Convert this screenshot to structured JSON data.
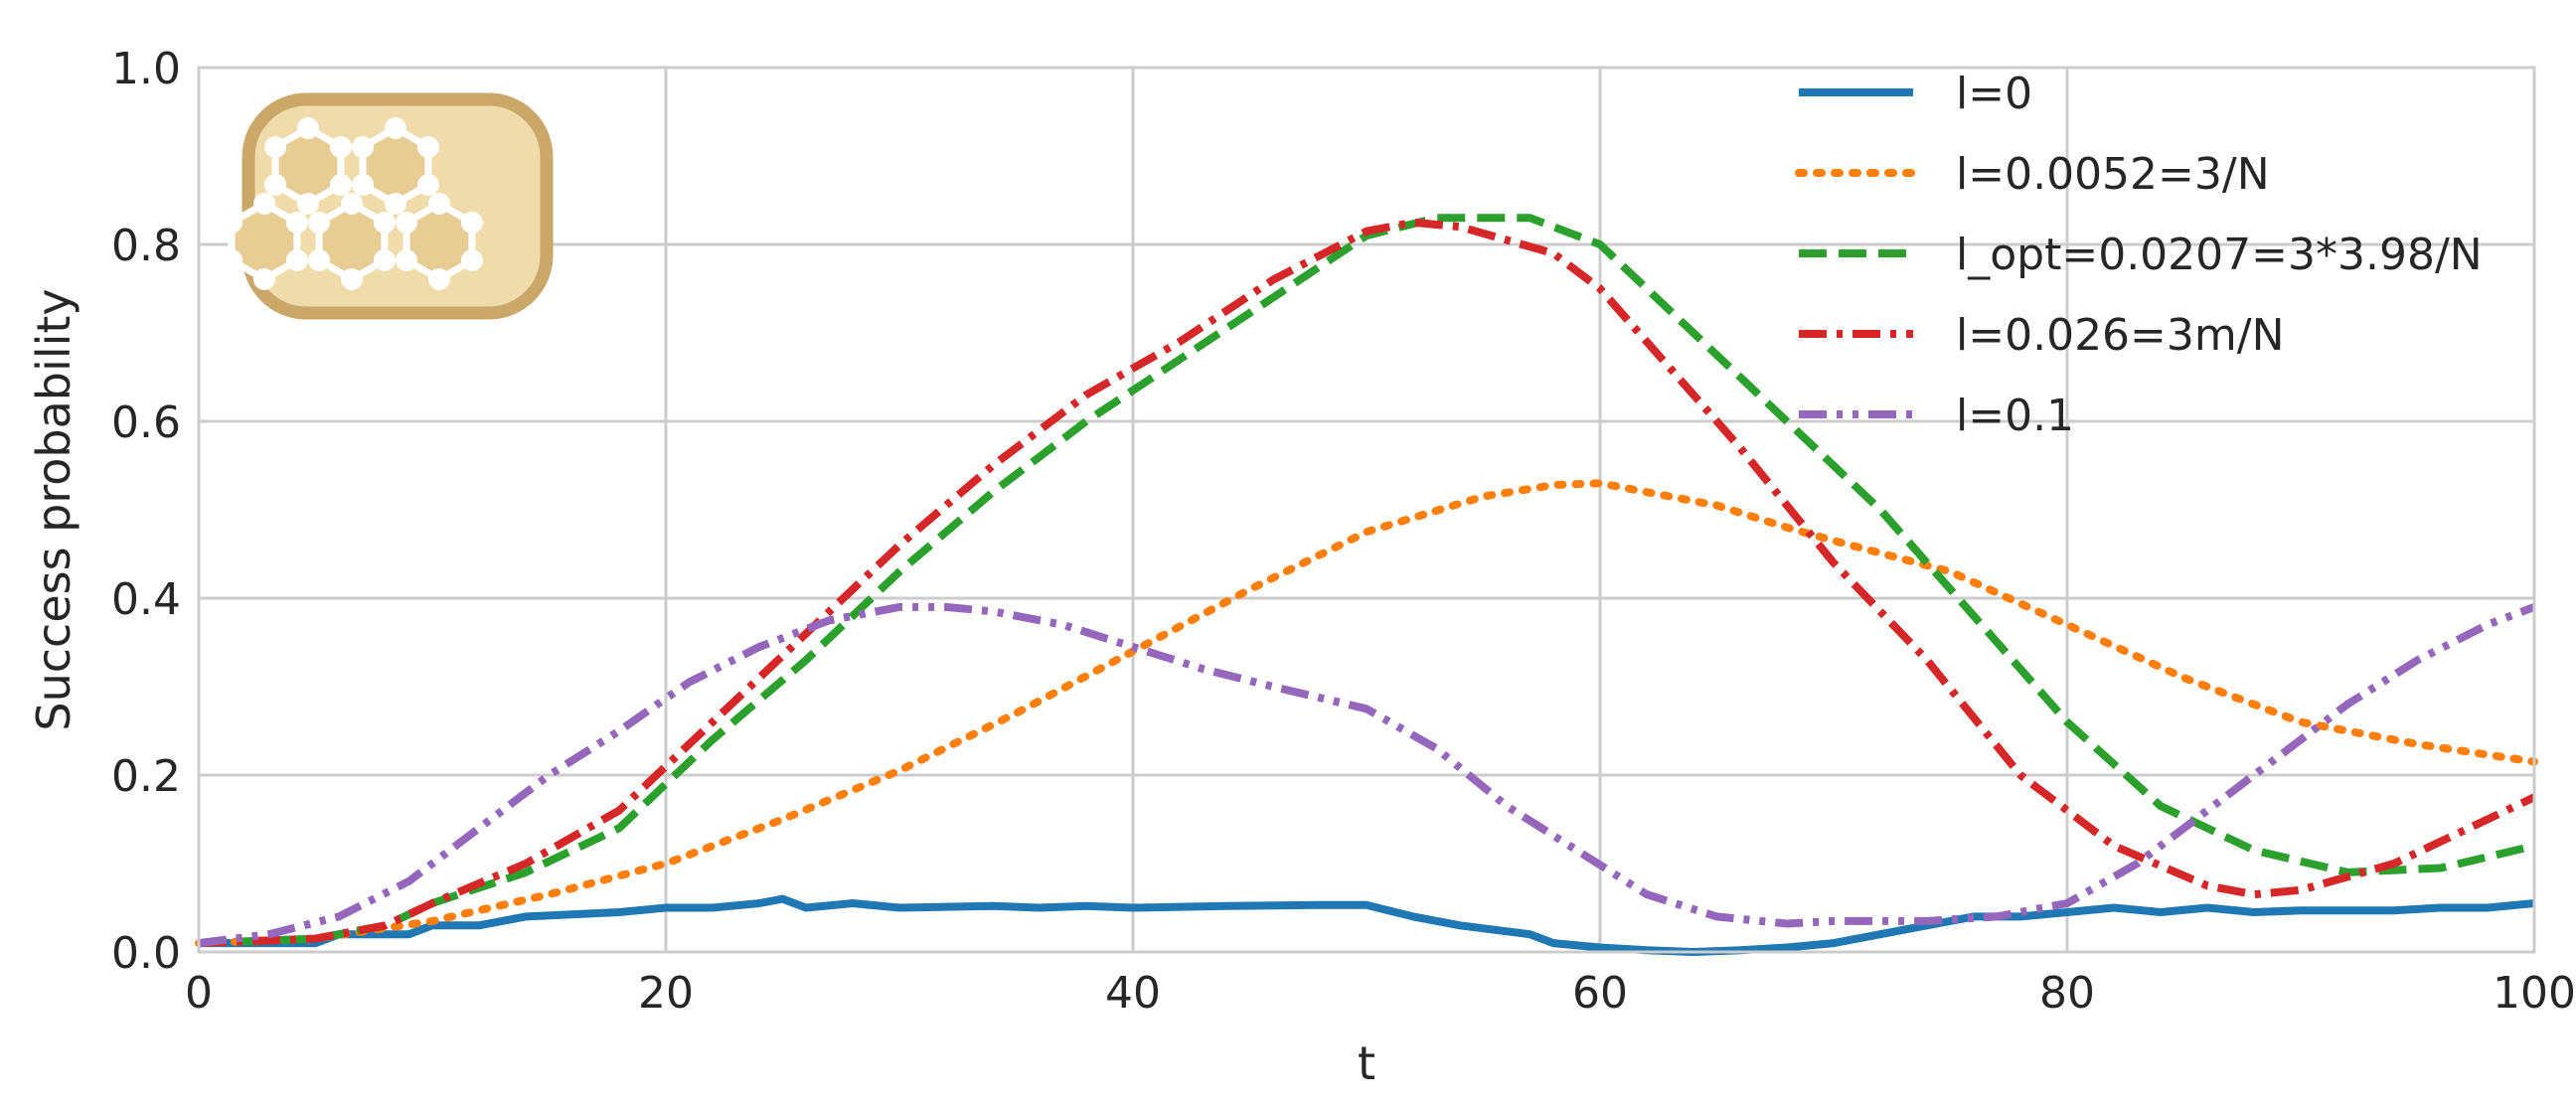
{
  "chart_data": {
    "type": "line",
    "title": "",
    "xlabel": "t",
    "ylabel": "Success probability",
    "xlim": [
      0,
      100
    ],
    "ylim": [
      0,
      1.0
    ],
    "grid": true,
    "legend_position": "top-right",
    "xticks": [
      "0",
      "20",
      "40",
      "60",
      "80",
      "100"
    ],
    "yticks": [
      "0.0",
      "0.2",
      "0.4",
      "0.6",
      "0.8",
      "1.0"
    ],
    "inset_icon": "hexagonal-lattice-icon",
    "series": [
      {
        "name": "l=0",
        "color": "#1f77b4",
        "style": "solid",
        "x": [
          0,
          5,
          6,
          9,
          10,
          12,
          14,
          18,
          20,
          22,
          24,
          25,
          26,
          28,
          30,
          34,
          36,
          38,
          40,
          44,
          48,
          50,
          52,
          54,
          57,
          58,
          60,
          62,
          64,
          66,
          68,
          70,
          72,
          74,
          76,
          78,
          80,
          82,
          84,
          86,
          88,
          90,
          92,
          94,
          96,
          98,
          100
        ],
        "y": [
          0.01,
          0.01,
          0.02,
          0.02,
          0.03,
          0.03,
          0.04,
          0.045,
          0.05,
          0.05,
          0.055,
          0.06,
          0.05,
          0.055,
          0.05,
          0.052,
          0.05,
          0.052,
          0.05,
          0.052,
          0.053,
          0.053,
          0.04,
          0.03,
          0.02,
          0.01,
          0.005,
          0.002,
          0.0,
          0.002,
          0.005,
          0.01,
          0.02,
          0.03,
          0.04,
          0.04,
          0.045,
          0.05,
          0.045,
          0.05,
          0.045,
          0.047,
          0.047,
          0.047,
          0.05,
          0.05,
          0.055
        ]
      },
      {
        "name": "l=0.0052=3/N",
        "color": "#ff7f0e",
        "style": "dotted",
        "x": [
          0,
          5,
          10,
          15,
          20,
          25,
          30,
          35,
          40,
          45,
          50,
          55,
          58,
          60,
          62,
          65,
          68,
          70,
          75,
          80,
          85,
          90,
          95,
          100
        ],
        "y": [
          0.01,
          0.015,
          0.035,
          0.065,
          0.1,
          0.15,
          0.205,
          0.27,
          0.34,
          0.41,
          0.475,
          0.515,
          0.528,
          0.53,
          0.52,
          0.505,
          0.48,
          0.465,
          0.43,
          0.37,
          0.31,
          0.26,
          0.235,
          0.215
        ]
      },
      {
        "name": "l_opt=0.0207=3*3.98/N",
        "color": "#2ca02c",
        "style": "dashed",
        "x": [
          0,
          5,
          8,
          10,
          14,
          18,
          22,
          26,
          30,
          34,
          38,
          42,
          46,
          50,
          53,
          55,
          57,
          60,
          64,
          68,
          72,
          76,
          80,
          84,
          88,
          92,
          96,
          100
        ],
        "y": [
          0.01,
          0.015,
          0.03,
          0.055,
          0.09,
          0.14,
          0.24,
          0.33,
          0.43,
          0.52,
          0.6,
          0.67,
          0.74,
          0.81,
          0.83,
          0.83,
          0.83,
          0.8,
          0.7,
          0.6,
          0.5,
          0.38,
          0.26,
          0.165,
          0.115,
          0.09,
          0.095,
          0.12
        ]
      },
      {
        "name": "l=0.026=3m/N",
        "color": "#d62728",
        "style": "dashdot",
        "x": [
          0,
          5,
          8,
          10,
          14,
          18,
          22,
          26,
          30,
          34,
          38,
          42,
          46,
          50,
          52,
          54,
          58,
          60,
          63,
          66,
          70,
          74,
          78,
          82,
          86,
          88,
          90,
          94,
          100
        ],
        "y": [
          0.01,
          0.015,
          0.03,
          0.055,
          0.1,
          0.16,
          0.26,
          0.36,
          0.46,
          0.55,
          0.63,
          0.69,
          0.76,
          0.815,
          0.825,
          0.82,
          0.79,
          0.75,
          0.66,
          0.57,
          0.44,
          0.33,
          0.2,
          0.12,
          0.075,
          0.065,
          0.07,
          0.1,
          0.175
        ]
      },
      {
        "name": "l=0.1",
        "color": "#9467bd",
        "style": "dashdotdot",
        "x": [
          0,
          3,
          6,
          9,
          12,
          15,
          18,
          21,
          24,
          27,
          30,
          32,
          34,
          37,
          40,
          43,
          46,
          50,
          53,
          56,
          59,
          62,
          65,
          68,
          70,
          74,
          77,
          80,
          83,
          86,
          89,
          92,
          95,
          98,
          100
        ],
        "y": [
          0.01,
          0.02,
          0.04,
          0.08,
          0.14,
          0.2,
          0.25,
          0.305,
          0.345,
          0.375,
          0.39,
          0.39,
          0.385,
          0.37,
          0.345,
          0.32,
          0.3,
          0.275,
          0.23,
          0.165,
          0.115,
          0.065,
          0.04,
          0.032,
          0.035,
          0.035,
          0.04,
          0.055,
          0.1,
          0.16,
          0.22,
          0.28,
          0.33,
          0.37,
          0.39
        ]
      }
    ]
  }
}
